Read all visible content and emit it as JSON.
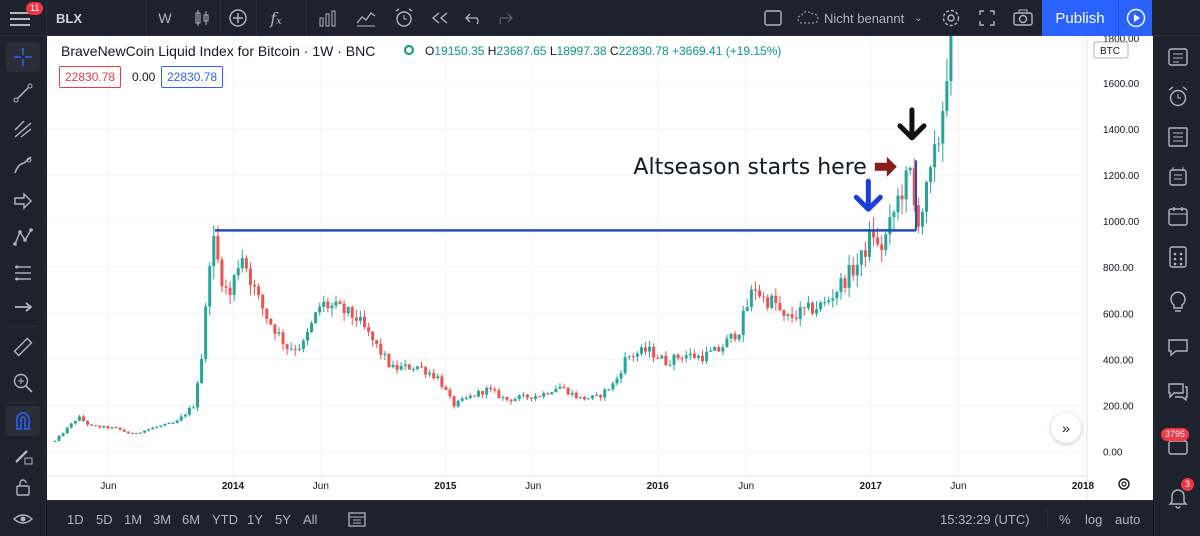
{
  "toolbar": {
    "notification_count": "11",
    "symbol": "BLX",
    "interval": "W",
    "layout_name": "Nicht benannt",
    "publish_label": "Publish"
  },
  "legend": {
    "title": "BraveNewCoin Liquid Index for Bitcoin · 1W · BNC",
    "open_label": "O",
    "open": "19150.35",
    "high_label": "H",
    "high": "23687.65",
    "low_label": "L",
    "low": "18997.38",
    "close_label": "C",
    "close": "22830.78",
    "change": "+3669.41 (+19.15%)",
    "price_box_1": "22830.78",
    "price_box_2": "0.00",
    "price_box_3": "22830.78"
  },
  "price_axis": {
    "currency_label": "BTC",
    "ticks": [
      "1800.00",
      "1600.00",
      "1400.00",
      "1200.00",
      "1000.00",
      "800.00",
      "600.00",
      "400.00",
      "200.00",
      "0.00"
    ]
  },
  "time_axis": {
    "ticks": [
      "Jun",
      "2014",
      "Jun",
      "2015",
      "Jun",
      "2016",
      "Jun",
      "2017",
      "Jun",
      "2018"
    ]
  },
  "annotations": {
    "altseason_text": "Altseason starts here"
  },
  "bottom": {
    "ranges": [
      "1D",
      "5D",
      "1M",
      "3M",
      "6M",
      "YTD",
      "1Y",
      "5Y",
      "All"
    ],
    "clock": "15:32:29 (UTC)",
    "percent_label": "%",
    "log_label": "log",
    "auto_label": "auto"
  },
  "right_badges": {
    "chat_count": "3795",
    "notif_count": "3"
  },
  "colors": {
    "up": "#26a69a",
    "down": "#ef5350",
    "level_line": "#1e4fb8",
    "accent": "#2962ff"
  },
  "chart_data": {
    "type": "candlestick",
    "title": "BraveNewCoin Liquid Index for Bitcoin · 1W · BNC",
    "ylim": [
      -40,
      1800
    ],
    "x_range": [
      "2013-03-01",
      "2018-01-20"
    ],
    "x_ticks": [
      {
        "label": "Jun",
        "date": "2013-06-01"
      },
      {
        "label": "2014",
        "date": "2014-01-01"
      },
      {
        "label": "Jun",
        "date": "2014-06-01"
      },
      {
        "label": "2015",
        "date": "2015-01-01"
      },
      {
        "label": "Jun",
        "date": "2015-06-01"
      },
      {
        "label": "2016",
        "date": "2016-01-01"
      },
      {
        "label": "Jun",
        "date": "2016-06-01"
      },
      {
        "label": "2017",
        "date": "2017-01-01"
      },
      {
        "label": "Jun",
        "date": "2017-06-01"
      },
      {
        "label": "2018",
        "date": "2018-01-01"
      }
    ],
    "price_path": [
      [
        "2013-03-01",
        45
      ],
      [
        "2013-04-10",
        150
      ],
      [
        "2013-05-01",
        110
      ],
      [
        "2013-06-15",
        100
      ],
      [
        "2013-07-10",
        75
      ],
      [
        "2013-08-20",
        105
      ],
      [
        "2013-09-25",
        125
      ],
      [
        "2013-10-25",
        200
      ],
      [
        "2013-11-10",
        440
      ],
      [
        "2013-11-25",
        950
      ],
      [
        "2013-12-10",
        780
      ],
      [
        "2013-12-25",
        660
      ],
      [
        "2014-01-15",
        870
      ],
      [
        "2014-02-10",
        680
      ],
      [
        "2014-03-01",
        580
      ],
      [
        "2014-04-05",
        450
      ],
      [
        "2014-05-01",
        460
      ],
      [
        "2014-06-01",
        640
      ],
      [
        "2014-07-01",
        620
      ],
      [
        "2014-08-01",
        580
      ],
      [
        "2014-09-01",
        470
      ],
      [
        "2014-10-01",
        360
      ],
      [
        "2014-11-15",
        370
      ],
      [
        "2014-12-20",
        320
      ],
      [
        "2015-01-15",
        200
      ],
      [
        "2015-02-15",
        240
      ],
      [
        "2015-03-15",
        270
      ],
      [
        "2015-04-15",
        225
      ],
      [
        "2015-05-15",
        235
      ],
      [
        "2015-06-15",
        245
      ],
      [
        "2015-07-15",
        285
      ],
      [
        "2015-08-20",
        230
      ],
      [
        "2015-09-20",
        235
      ],
      [
        "2015-10-20",
        300
      ],
      [
        "2015-11-08",
        410
      ],
      [
        "2015-12-15",
        440
      ],
      [
        "2016-01-15",
        390
      ],
      [
        "2016-02-15",
        420
      ],
      [
        "2016-03-15",
        410
      ],
      [
        "2016-04-15",
        440
      ],
      [
        "2016-05-20",
        530
      ],
      [
        "2016-06-15",
        720
      ],
      [
        "2016-07-01",
        660
      ],
      [
        "2016-07-20",
        650
      ],
      [
        "2016-08-05",
        570
      ],
      [
        "2016-09-01",
        600
      ],
      [
        "2016-10-15",
        640
      ],
      [
        "2016-11-15",
        740
      ],
      [
        "2016-12-15",
        830
      ],
      [
        "2017-01-05",
        960
      ],
      [
        "2017-01-15",
        860
      ],
      [
        "2017-02-01",
        960
      ],
      [
        "2017-02-20",
        1120
      ],
      [
        "2017-03-10",
        1200
      ],
      [
        "2017-03-20",
        1000
      ],
      [
        "2017-04-01",
        1060
      ],
      [
        "2017-04-15",
        1200
      ],
      [
        "2017-05-01",
        1400
      ],
      [
        "2017-05-15",
        1750
      ],
      [
        "2017-05-25",
        1900
      ]
    ],
    "level_line": {
      "from": "2013-12-01",
      "to": "2017-03-20",
      "value": 960
    },
    "annotations": [
      {
        "text": "Altseason starts here",
        "date": "2017-02-15",
        "value": 1240,
        "arrow": "right",
        "color": "#8b1a1a"
      },
      {
        "arrow": "down",
        "date": "2016-12-28",
        "value": 1060,
        "color": "#1a3fd6"
      },
      {
        "arrow": "down",
        "date": "2017-03-13",
        "value": 1370,
        "color": "#111111"
      }
    ]
  }
}
